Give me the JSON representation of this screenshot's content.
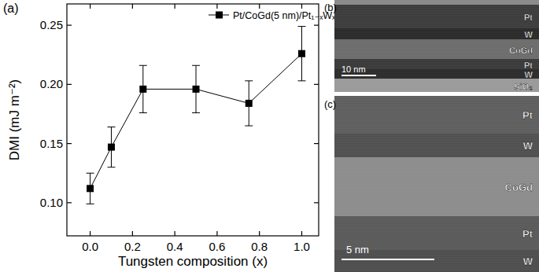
{
  "chart_data": {
    "type": "line",
    "annotations": [
      "(a)"
    ],
    "x_label": "Tungsten composition (x)",
    "y_label": "DMI (mJ m⁻²)",
    "x": [
      0,
      0.1,
      0.25,
      0.5,
      0.75,
      1.0
    ],
    "series": [
      {
        "name": "Pt/CoGd(5 nm)/Pt₁₋ₓWₓ",
        "color": "#000000",
        "marker": "square",
        "line_style": "solid",
        "values": [
          0.112,
          0.147,
          0.196,
          0.196,
          0.184,
          0.226
        ],
        "errors": [
          0.013,
          0.017,
          0.02,
          0.02,
          0.019,
          0.023
        ]
      }
    ],
    "xlim": [
      -0.11,
      1.08
    ],
    "xticks": [
      {
        "value": 0,
        "label": "0.0"
      },
      0.2,
      0.4,
      0.6,
      0.8,
      {
        "value": 1,
        "label": "1.0"
      }
    ],
    "ylim": [
      0.072,
      0.268
    ],
    "yticks": [
      {
        "value": 0.1,
        "label": "0.10"
      },
      0.15,
      {
        "value": 0.2,
        "label": "0.20"
      },
      0.25
    ],
    "legend": "top-right",
    "grid": false
  },
  "images": [
    {
      "label": "(b)",
      "layers": [
        "Pt",
        "W",
        "CoGd",
        "Pt",
        "W",
        "SiO₂"
      ],
      "scale_bar": "10 nm"
    },
    {
      "label": "(c)",
      "layers": [
        "Pt",
        "W",
        "CoGd",
        "Pt",
        "W"
      ],
      "scale_bar": "5 nm"
    }
  ]
}
